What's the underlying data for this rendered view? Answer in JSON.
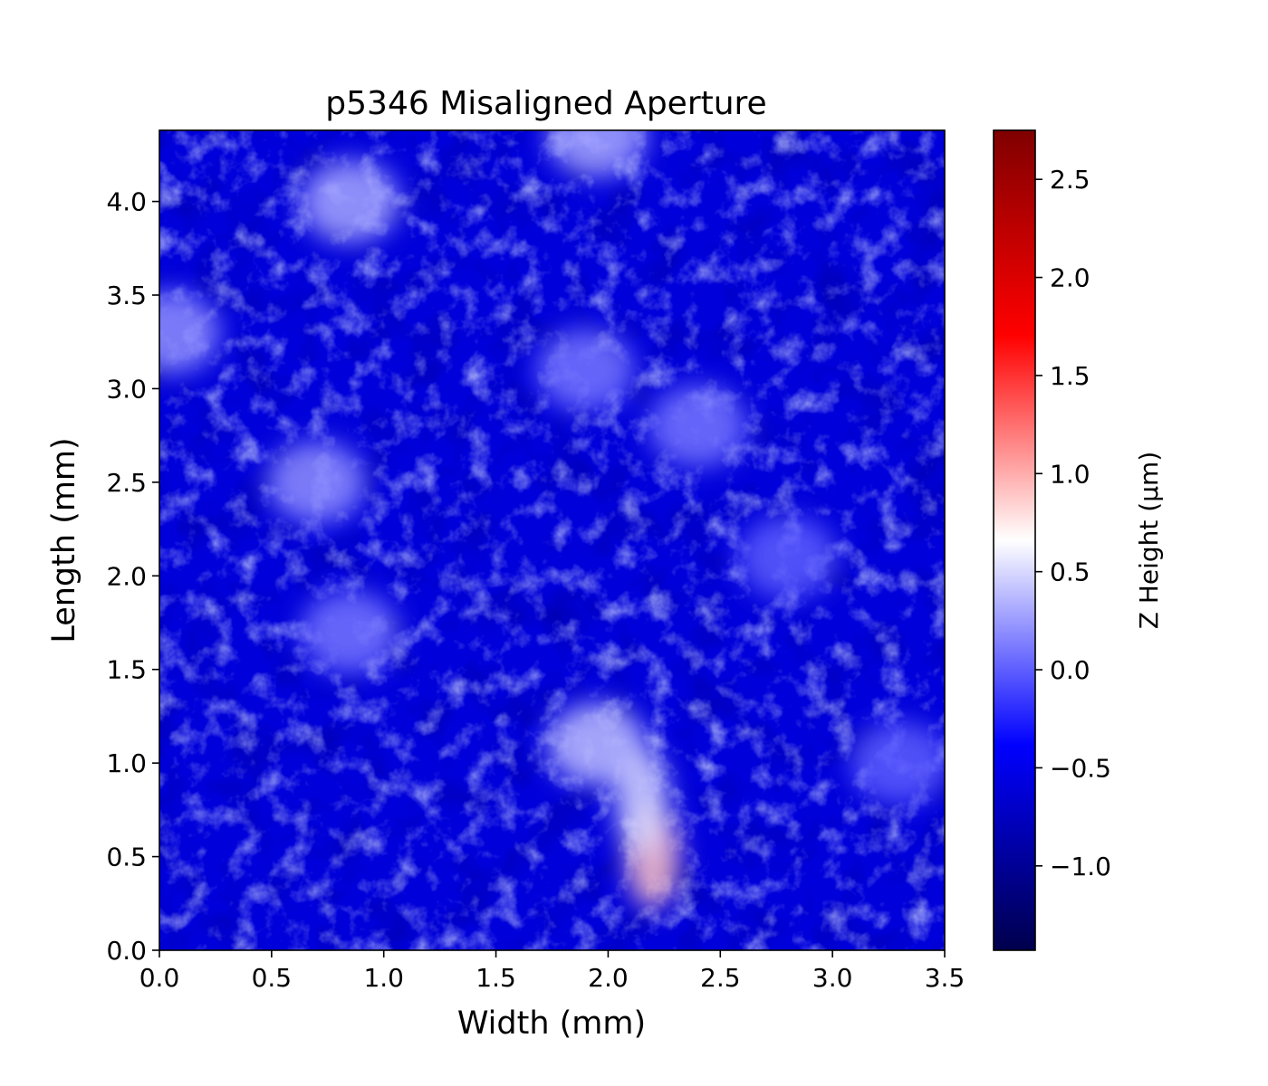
{
  "chart_data": {
    "type": "heatmap",
    "title": "p5346 Misaligned Aperture",
    "xlabel": "Width (mm)",
    "ylabel": "Length (mm)",
    "xlim": [
      0,
      3.5
    ],
    "ylim": [
      0,
      4.38
    ],
    "x_ticks": [
      "0.0",
      "0.5",
      "1.0",
      "1.5",
      "2.0",
      "2.5",
      "3.0",
      "3.5"
    ],
    "y_ticks": [
      "0.0",
      "0.5",
      "1.0",
      "1.5",
      "2.0",
      "2.5",
      "3.0",
      "3.5",
      "4.0"
    ],
    "colorbar": {
      "label": "Z Height (μm)",
      "colormap": "seismic",
      "range": [
        -1.43,
        2.75
      ],
      "ticks": [
        "−1.0",
        "−0.5",
        "0.0",
        "0.5",
        "1.0",
        "1.5",
        "2.0",
        "2.5"
      ],
      "colors": {
        "low": "#00004c",
        "mid_low": "#0000ff",
        "mid": "#ffffff",
        "mid_high": "#ff0000",
        "high": "#800000"
      }
    },
    "grid": false,
    "features": [
      {
        "description": "dominant background",
        "z": -0.6
      },
      {
        "x": 2.2,
        "y": 0.5,
        "z": 0.9
      },
      {
        "x": 2.15,
        "y": 0.8,
        "z": 0.5
      },
      {
        "x": 1.95,
        "y": 1.1,
        "z": 0.4
      },
      {
        "x": 0.85,
        "y": 4.0,
        "z": 0.3
      },
      {
        "x": 0.05,
        "y": 3.3,
        "z": 0.2
      },
      {
        "x": 0.7,
        "y": 2.5,
        "z": 0.2
      },
      {
        "x": 0.85,
        "y": 1.7,
        "z": 0.1
      },
      {
        "x": 1.9,
        "y": 3.1,
        "z": 0.1
      },
      {
        "x": 2.4,
        "y": 2.8,
        "z": 0.1
      },
      {
        "x": 2.8,
        "y": 2.1,
        "z": 0.0
      },
      {
        "x": 3.3,
        "y": 1.0,
        "z": 0.0
      },
      {
        "x": 1.95,
        "y": 4.35,
        "z": 0.3
      }
    ]
  }
}
